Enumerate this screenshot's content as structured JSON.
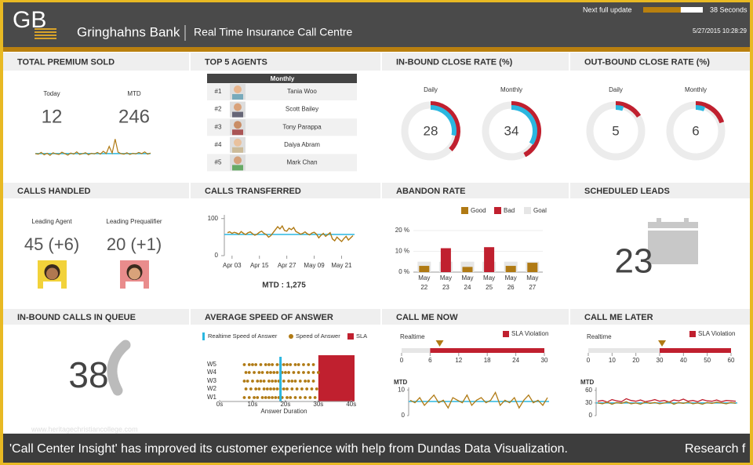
{
  "header": {
    "logo": "GB",
    "bank": "Gringhahns Bank",
    "title": "Real Time Insurance Call Centre",
    "next_update_label": "Next full update",
    "update_progress": 0.63,
    "countdown": "38 Seconds",
    "timestamp": "5/27/2015 10:28:29"
  },
  "premium": {
    "title": "TOTAL PREMIUM SOLD",
    "today_label": "Today",
    "today": 12,
    "mtd_label": "MTD",
    "mtd": 246,
    "trend": [
      30,
      28,
      34,
      26,
      31,
      24,
      33,
      29,
      27,
      35,
      30,
      25,
      32,
      28,
      36,
      27,
      30,
      33,
      26,
      31,
      29,
      34,
      28,
      38,
      30,
      55,
      32,
      80,
      35,
      30,
      28,
      33,
      27,
      31,
      29,
      34,
      30,
      36,
      28,
      32
    ],
    "target": 30,
    "ylim": [
      0,
      100
    ]
  },
  "agents": {
    "title": "TOP 5 AGENTS",
    "header": "Monthly",
    "rows": [
      {
        "rank": "#1",
        "name": "Tania Woo"
      },
      {
        "rank": "#2",
        "name": "Scott Bailey"
      },
      {
        "rank": "#3",
        "name": "Tony Parappa"
      },
      {
        "rank": "#4",
        "name": "Daiya Abram"
      },
      {
        "rank": "#5",
        "name": "Mark Chan"
      }
    ]
  },
  "inbound_close": {
    "title": "IN-BOUND CLOSE RATE (%)",
    "max": 100,
    "gauges": [
      {
        "label": "Daily",
        "value": 28,
        "goal": 37
      },
      {
        "label": "Monthly",
        "value": 34,
        "goal": 42
      }
    ]
  },
  "outbound_close": {
    "title": "OUT-BOUND CLOSE RATE (%)",
    "max": 100,
    "gauges": [
      {
        "label": "Daily",
        "value": 5,
        "goal": 16
      },
      {
        "label": "Monthly",
        "value": 6,
        "goal": 20
      }
    ]
  },
  "calls_handled": {
    "title": "CALLS HANDLED",
    "agent_label": "Leading Agent",
    "agent_value": "45 (+6)",
    "prequalifier_label": "Leading Prequalifier",
    "prequalifier_value": "20 (+1)"
  },
  "calls_transferred": {
    "title": "CALLS TRANSFERRED",
    "values": [
      62,
      64,
      60,
      63,
      61,
      58,
      65,
      60,
      57,
      62,
      64,
      59,
      55,
      58,
      63,
      66,
      60,
      57,
      50,
      54,
      62,
      70,
      78,
      72,
      80,
      68,
      66,
      74,
      70,
      76,
      65,
      62,
      58,
      60,
      64,
      59,
      56,
      61,
      63,
      58,
      48,
      55,
      60,
      52,
      57,
      62,
      45,
      40,
      50,
      44,
      38,
      46,
      52,
      42,
      48,
      54
    ],
    "target": 57,
    "ylim": [
      0,
      110
    ],
    "yticks": [
      0,
      100
    ],
    "xlim": [
      0,
      55
    ],
    "xticks": [
      {
        "value": 2,
        "label": "Apr 03"
      },
      {
        "value": 14,
        "label": "Apr 15"
      },
      {
        "value": 26,
        "label": "Apr 27"
      },
      {
        "value": 38,
        "label": "May 09"
      },
      {
        "value": 50,
        "label": "May 21"
      }
    ],
    "mtd": "MTD : 1,275"
  },
  "abandon": {
    "title": "ABANDON RATE",
    "categories": [
      {
        "month": "May",
        "day": "22"
      },
      {
        "month": "May",
        "day": "23"
      },
      {
        "month": "May",
        "day": "24"
      },
      {
        "month": "May",
        "day": "25"
      },
      {
        "month": "May",
        "day": "26"
      },
      {
        "month": "May",
        "day": "27"
      }
    ],
    "series": [
      {
        "name": "Good",
        "color": "#b07a14",
        "values": [
          3,
          null,
          2.5,
          null,
          3,
          4.5
        ]
      },
      {
        "name": "Bad",
        "color": "#c0202f",
        "values": [
          null,
          11.5,
          null,
          12,
          null,
          null
        ]
      },
      {
        "name": "Goal",
        "color": "#e6e6e6",
        "values": [
          5,
          5,
          5,
          5,
          5,
          5
        ]
      }
    ],
    "ylim": [
      0,
      21
    ],
    "yticks": [
      {
        "value": 0,
        "label": "0 %"
      },
      {
        "value": 10,
        "label": "10 %"
      },
      {
        "value": 20,
        "label": "20 %"
      }
    ]
  },
  "scheduled": {
    "title": "SCHEDULED LEADS",
    "value": 23
  },
  "queue": {
    "title": "IN-BOUND CALLS IN QUEUE",
    "value": 38
  },
  "speed": {
    "title": "AVERAGE SPEED OF ANSWER",
    "legend_realtime": "Realtime Speed of Answer",
    "legend_speed": "Speed of Answer",
    "legend_sla": "SLA",
    "categories": [
      "W1",
      "W2",
      "W3",
      "W4",
      "W5"
    ],
    "points": [
      [
        7.5,
        9,
        10.5,
        11.5,
        13,
        14,
        15,
        16,
        17,
        18,
        19,
        20.5,
        21.5,
        23,
        24.5,
        26,
        27.5,
        29
      ],
      [
        8,
        9.5,
        11,
        12,
        13.5,
        14.5,
        15.5,
        16.5,
        17.5,
        18.5,
        19.5,
        20.5,
        22,
        23.5,
        25,
        26.5,
        28,
        29.5
      ],
      [
        7.5,
        8.5,
        10,
        11.5,
        12.5,
        13.5,
        15,
        16,
        17,
        18,
        19.5,
        21,
        22,
        23,
        24.5,
        26,
        27,
        28.5
      ],
      [
        8,
        9,
        10.5,
        12,
        13,
        14.5,
        15.5,
        16.5,
        17.5,
        19,
        20,
        21,
        22.5,
        24,
        25.5,
        27,
        28.5,
        30
      ],
      [
        7.5,
        9,
        10,
        11,
        12.5,
        14,
        15,
        16,
        17.5,
        18.5,
        19.5,
        20.5,
        21.5,
        23,
        24,
        25.5,
        27,
        28.5
      ]
    ],
    "realtime": 18.5,
    "sla": 30,
    "xlim": [
      0,
      41
    ],
    "xticks": [
      {
        "value": 0,
        "label": "0s"
      },
      {
        "value": 10,
        "label": "10s"
      },
      {
        "value": 20,
        "label": "20s"
      },
      {
        "value": 30,
        "label": "30s"
      },
      {
        "value": 40,
        "label": "40s"
      }
    ],
    "xlabel": "Answer Duration"
  },
  "call_me_now": {
    "title": "CALL ME NOW",
    "realtime_label": "Realtime",
    "sla_label": "SLA Violation",
    "realtime": 8,
    "sla": 6,
    "xlim": [
      0,
      30
    ],
    "xticks": [
      0,
      6,
      12,
      18,
      24,
      30
    ],
    "mtd_label": "MTD",
    "mtd_series": [
      [
        6,
        5,
        7,
        4,
        6,
        8,
        5,
        6,
        3,
        7,
        6,
        5,
        8,
        4,
        6,
        7,
        5,
        6,
        9,
        4,
        6,
        5,
        7,
        3,
        6,
        8,
        5,
        6,
        4,
        7
      ]
    ],
    "mtd_colors": [
      "#b07a14"
    ],
    "mtd_target": 5.5,
    "mtd_ylim": [
      0,
      11
    ],
    "mtd_yticks": [
      0,
      10
    ]
  },
  "call_me_later": {
    "title": "CALL ME LATER",
    "realtime_label": "Realtime",
    "sla_label": "SLA Violation",
    "realtime": 31,
    "sla": 30,
    "xlim": [
      0,
      60
    ],
    "xticks": [
      0,
      10,
      20,
      30,
      40,
      50,
      60
    ],
    "mtd_label": "MTD",
    "mtd_series": [
      [
        34,
        36,
        32,
        38,
        35,
        33,
        40,
        36,
        34,
        37,
        33,
        35,
        38,
        34,
        36,
        32,
        37,
        35,
        39,
        34,
        36,
        33,
        38,
        35,
        34,
        37,
        33,
        36,
        35,
        34
      ],
      [
        30,
        28,
        32,
        27,
        31,
        29,
        33,
        28,
        30,
        27,
        32,
        29,
        31,
        28,
        30,
        33,
        27,
        31,
        29,
        32,
        28,
        30,
        27,
        31,
        29,
        32,
        30,
        28,
        31,
        29
      ]
    ],
    "mtd_colors": [
      "#c0202f",
      "#b07a14"
    ],
    "mtd_target": 30,
    "mtd_ylim": [
      0,
      67
    ],
    "mtd_yticks": [
      0,
      30,
      60
    ]
  },
  "watermark": "www.heritagechristiancollege.com",
  "footer": {
    "ticker": "'Call Center Insight' has improved its customer experience with help from Dundas Data Visualization.",
    "ticker_next": "Research f"
  }
}
